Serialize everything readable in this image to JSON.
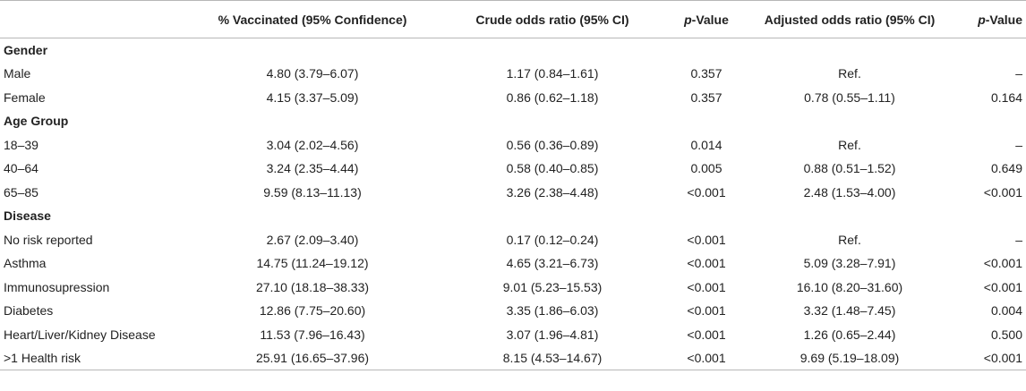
{
  "header": {
    "col0": "",
    "col1": "% Vaccinated (95% Confidence)",
    "col2": "Crude odds ratio (95% CI)",
    "col3_p": "p",
    "col3_rest": "-Value",
    "col4": "Adjusted odds ratio (95% CI)",
    "col5_p": "p",
    "col5_rest": "-Value"
  },
  "groups": [
    {
      "name": "Gender",
      "rows": [
        {
          "label": "Male",
          "vaccinated": "4.80 (3.79–6.07)",
          "crude": "1.17 (0.84–1.61)",
          "p1": "0.357",
          "adjusted": "Ref.",
          "p2": "–"
        },
        {
          "label": "Female",
          "vaccinated": "4.15 (3.37–5.09)",
          "crude": "0.86 (0.62–1.18)",
          "p1": "0.357",
          "adjusted": "0.78 (0.55–1.11)",
          "p2": "0.164"
        }
      ]
    },
    {
      "name": "Age Group",
      "rows": [
        {
          "label": "18–39",
          "vaccinated": "3.04 (2.02–4.56)",
          "crude": "0.56 (0.36–0.89)",
          "p1": "0.014",
          "adjusted": "Ref.",
          "p2": "–"
        },
        {
          "label": "40–64",
          "vaccinated": "3.24 (2.35–4.44)",
          "crude": "0.58 (0.40–0.85)",
          "p1": "0.005",
          "adjusted": "0.88 (0.51–1.52)",
          "p2": "0.649"
        },
        {
          "label": "65–85",
          "vaccinated": "9.59 (8.13–11.13)",
          "crude": "3.26 (2.38–4.48)",
          "p1": "<0.001",
          "adjusted": "2.48 (1.53–4.00)",
          "p2": "<0.001"
        }
      ]
    },
    {
      "name": "Disease",
      "rows": [
        {
          "label": "No risk reported",
          "vaccinated": "2.67 (2.09–3.40)",
          "crude": "0.17 (0.12–0.24)",
          "p1": "<0.001",
          "adjusted": "Ref.",
          "p2": "–"
        },
        {
          "label": "Asthma",
          "vaccinated": "14.75 (11.24–19.12)",
          "crude": "4.65 (3.21–6.73)",
          "p1": "<0.001",
          "adjusted": "5.09 (3.28–7.91)",
          "p2": "<0.001"
        },
        {
          "label": "Immunosupression",
          "vaccinated": "27.10 (18.18–38.33)",
          "crude": "9.01 (5.23–15.53)",
          "p1": "<0.001",
          "adjusted": "16.10 (8.20–31.60)",
          "p2": "<0.001"
        },
        {
          "label": "Diabetes",
          "vaccinated": "12.86 (7.75–20.60)",
          "crude": "3.35 (1.86–6.03)",
          "p1": "<0.001",
          "adjusted": "3.32 (1.48–7.45)",
          "p2": "0.004"
        },
        {
          "label": "Heart/Liver/Kidney Disease",
          "vaccinated": "11.53 (7.96–16.43)",
          "crude": "3.07 (1.96–4.81)",
          "p1": "<0.001",
          "adjusted": "1.26 (0.65–2.44)",
          "p2": "0.500"
        },
        {
          "label": ">1 Health risk",
          "vaccinated": "25.91 (16.65–37.96)",
          "crude": "8.15 (4.53–14.67)",
          "p1": "<0.001",
          "adjusted": "9.69 (5.19–18.09)",
          "p2": "<0.001"
        }
      ]
    }
  ]
}
